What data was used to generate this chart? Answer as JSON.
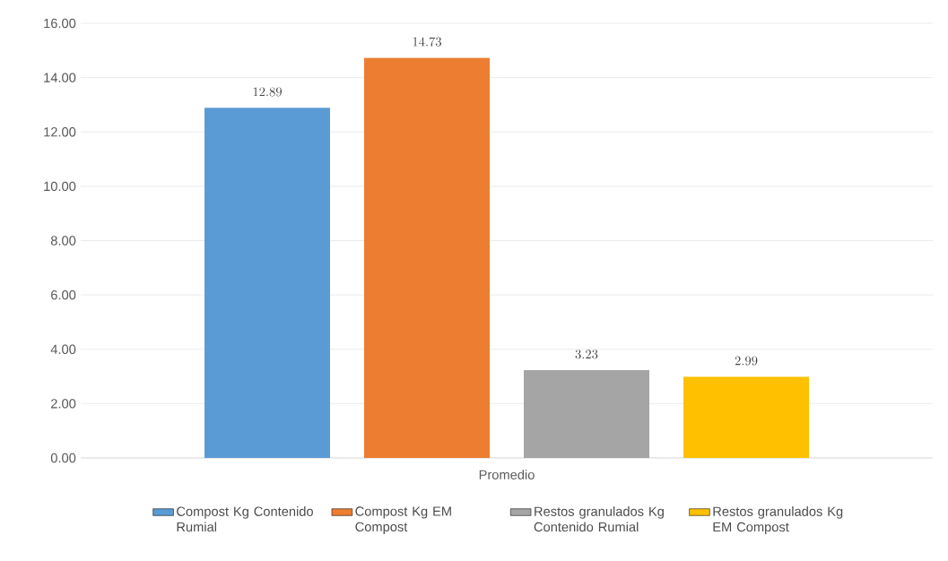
{
  "chart_data": {
    "type": "bar",
    "categories": [
      "Promedio"
    ],
    "series": [
      {
        "name": "Compost Kg Contenido Rumial",
        "color": "#5b9bd5",
        "values": [
          12.89
        ]
      },
      {
        "name": "Compost Kg EM Compost",
        "color": "#ed7d31",
        "values": [
          14.73
        ]
      },
      {
        "name": "Restos granulados Kg Contenido Rumial",
        "color": "#a5a5a5",
        "values": [
          3.23
        ]
      },
      {
        "name": "Restos granulados Kg EM Compost",
        "color": "#ffc000",
        "values": [
          2.99
        ]
      }
    ],
    "ylim": [
      0,
      16
    ],
    "yticks": [
      {
        "value": 0,
        "label": "0.00"
      },
      {
        "value": 2,
        "label": "2.00"
      },
      {
        "value": 4,
        "label": "4.00"
      },
      {
        "value": 6,
        "label": "6.00"
      },
      {
        "value": 8,
        "label": "8.00"
      },
      {
        "value": 10,
        "label": "10.00"
      },
      {
        "value": 12,
        "label": "12.00"
      },
      {
        "value": 14,
        "label": "14.00"
      },
      {
        "value": 16,
        "label": "16.00"
      }
    ],
    "grid": "y",
    "legend": "bottom",
    "data_labels": true
  }
}
